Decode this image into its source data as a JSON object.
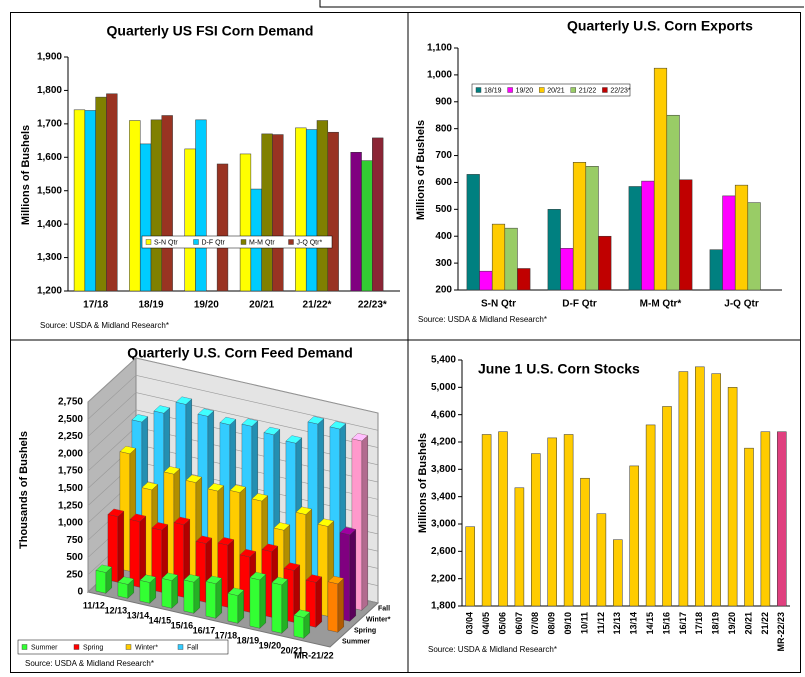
{
  "chart_data": [
    {
      "type": "bar",
      "title": "Quarterly US FSI Corn Demand",
      "y_label": "Millions of Bushels",
      "source": "Source: USDA & Midland Research*",
      "categories": [
        "17/18",
        "18/19",
        "19/20",
        "20/21",
        "21/22*",
        "22/23*"
      ],
      "series": [
        {
          "name": "S-N Qtr",
          "color": "#ffff00",
          "colors": [
            "#ffff00",
            "#ffff00",
            "#ffff00",
            "#ffff00",
            "#ffff00",
            "#800080"
          ],
          "values": [
            1742,
            1710,
            1625,
            1610,
            1688,
            1615
          ]
        },
        {
          "name": "D-F Qtr",
          "color": "#00ccff",
          "colors": [
            "#00ccff",
            "#00ccff",
            "#00ccff",
            "#00ccff",
            "#00ccff",
            "#33cc33"
          ],
          "values": [
            1740,
            1640,
            1712,
            1505,
            1683,
            1590
          ]
        },
        {
          "name": "M-M Qtr",
          "color": "#808000",
          "colors": [
            "#808000",
            "#808000",
            "#808000",
            "#808000",
            "#808000",
            "#8b2535"
          ],
          "values": [
            1780,
            1712,
            null,
            1670,
            1710,
            1658
          ]
        },
        {
          "name": "J-Q Qtr*",
          "color": "#993322",
          "values": [
            1790,
            1725,
            1580,
            1668,
            1675,
            null
          ]
        }
      ],
      "ylim": [
        1200,
        1900
      ],
      "yticks": [
        {
          "value": 1200,
          "label": "1,200"
        },
        {
          "value": 1300,
          "label": "1,300"
        },
        {
          "value": 1400,
          "label": "1,400"
        },
        {
          "value": 1500,
          "label": "1,500"
        },
        {
          "value": 1600,
          "label": "1,600"
        },
        {
          "value": 1700,
          "label": "1,700"
        },
        {
          "value": 1800,
          "label": "1,800"
        },
        {
          "value": 1900,
          "label": "1,900"
        }
      ],
      "grid": false
    },
    {
      "type": "bar",
      "title": "Quarterly U.S. Corn Exports",
      "y_label": "Millions of Bushels",
      "source": "Source: USDA & Midland Research*",
      "categories": [
        "S-N Qtr",
        "D-F Qtr",
        "M-M Qtr*",
        "J-Q Qtr"
      ],
      "series": [
        {
          "name": "18/19",
          "color": "#008080",
          "values": [
            630,
            500,
            585,
            350
          ]
        },
        {
          "name": "19/20",
          "color": "#ff00ff",
          "values": [
            270,
            355,
            605,
            550
          ]
        },
        {
          "name": "20/21",
          "color": "#ffcc00",
          "values": [
            445,
            675,
            1025,
            590
          ]
        },
        {
          "name": "21/22",
          "color": "#99cc66",
          "values": [
            430,
            660,
            850,
            525
          ]
        },
        {
          "name": "22/23*",
          "color": "#c00000",
          "values": [
            280,
            400,
            610,
            null
          ]
        }
      ],
      "ylim": [
        200,
        1100
      ],
      "yticks": [
        200,
        300,
        400,
        500,
        600,
        700,
        800,
        900,
        {
          "value": 1000,
          "label": "1,000"
        },
        {
          "value": 1100,
          "label": "1,100"
        }
      ],
      "grid": false
    },
    {
      "type": "bar3d",
      "title": "Quarterly U.S. Corn Feed Demand",
      "y_label": "Thousands of Bushels",
      "source": "Source: USDA & Midland Research*",
      "categories": [
        "11/12",
        "12/13",
        "13/14",
        "14/15",
        "15/16",
        "16/17",
        "17/18",
        "18/19",
        "19/20",
        "20/21",
        "MR-21/22"
      ],
      "series": [
        {
          "name": "Summer",
          "color": "#33ff33",
          "values": [
            300,
            200,
            300,
            400,
            450,
            500,
            400,
            700,
            700,
            300,
            null
          ]
        },
        {
          "name": "Spring",
          "color": "#ff0000",
          "colors": [
            "#ff0000",
            "#ff0000",
            "#ff0000",
            "#ff0000",
            "#ff0000",
            "#ff0000",
            "#ff0000",
            "#ff0000",
            "#ff0000",
            "#ff0000",
            "#ff8000"
          ],
          "values": [
            950,
            950,
            900,
            1050,
            850,
            900,
            800,
            950,
            750,
            650,
            700
          ]
        },
        {
          "name": "Winter*",
          "color": "#ffcc00",
          "colors": [
            "#ffcc00",
            "#ffcc00",
            "#ffcc00",
            "#ffcc00",
            "#ffcc00",
            "#ffcc00",
            "#ffcc00",
            "#ffcc00",
            "#ffcc00",
            "#ffcc00",
            "#800080"
          ],
          "values": [
            1700,
            1250,
            1550,
            1500,
            1450,
            1500,
            1450,
            1100,
            1400,
            1300,
            1250
          ]
        },
        {
          "name": "Fall",
          "color": "#33ccff",
          "colors": [
            "#33ccff",
            "#33ccff",
            "#33ccff",
            "#33ccff",
            "#33ccff",
            "#33ccff",
            "#33ccff",
            "#33ccff",
            "#33ccff",
            "#33ccff",
            "#ff99cc"
          ],
          "values": [
            2000,
            2200,
            2400,
            2300,
            2250,
            2300,
            2250,
            2200,
            2550,
            2550,
            2450
          ]
        }
      ],
      "ylim": [
        0,
        2750
      ],
      "yticks": [
        0,
        250,
        500,
        750,
        {
          "value": 1000,
          "label": "1,000"
        },
        {
          "value": 1250,
          "label": "1,250"
        },
        {
          "value": 1500,
          "label": "1,500"
        },
        {
          "value": 1750,
          "label": "1,750"
        },
        {
          "value": 2000,
          "label": "2,000"
        },
        {
          "value": 2250,
          "label": "2,250"
        },
        {
          "value": 2500,
          "label": "2,500"
        },
        {
          "value": 2750,
          "label": "2,750"
        }
      ],
      "grid": true
    },
    {
      "type": "bar",
      "title": "June 1 U.S. Corn Stocks",
      "y_label": "Millions of Bushels",
      "source": "Source: USDA & Midland Research*",
      "categories": [
        "03/04",
        "04/05",
        "05/06",
        "06/07",
        "07/08",
        "08/09",
        "09/10",
        "10/11",
        "11/12",
        "12/13",
        "13/14",
        "14/15",
        "15/16",
        "16/17",
        "17/18",
        "18/19",
        "19/20",
        "20/21",
        "21/22",
        "MR-22/23"
      ],
      "values": [
        2960,
        4310,
        4350,
        3530,
        4030,
        4260,
        4310,
        3670,
        3150,
        2770,
        3850,
        4450,
        4720,
        5230,
        5300,
        5200,
        5000,
        4110,
        4350,
        4350
      ],
      "color": "#ffcc00",
      "colors": [
        "#ffcc00",
        "#ffcc00",
        "#ffcc00",
        "#ffcc00",
        "#ffcc00",
        "#ffcc00",
        "#ffcc00",
        "#ffcc00",
        "#ffcc00",
        "#ffcc00",
        "#ffcc00",
        "#ffcc00",
        "#ffcc00",
        "#ffcc00",
        "#ffcc00",
        "#ffcc00",
        "#ffcc00",
        "#ffcc00",
        "#ffcc00",
        "#e0407f"
      ],
      "ylim": [
        1800,
        5400
      ],
      "yticks": [
        {
          "value": 1800,
          "label": "1,800"
        },
        {
          "value": 2200,
          "label": "2,200"
        },
        {
          "value": 2600,
          "label": "2,600"
        },
        {
          "value": 3000,
          "label": "3,000"
        },
        {
          "value": 3400,
          "label": "3,400"
        },
        {
          "value": 3800,
          "label": "3,800"
        },
        {
          "value": 4200,
          "label": "4,200"
        },
        {
          "value": 4600,
          "label": "4,600"
        },
        {
          "value": 5000,
          "label": "5,000"
        },
        {
          "value": 5400,
          "label": "5,400"
        }
      ],
      "grid": false
    }
  ]
}
